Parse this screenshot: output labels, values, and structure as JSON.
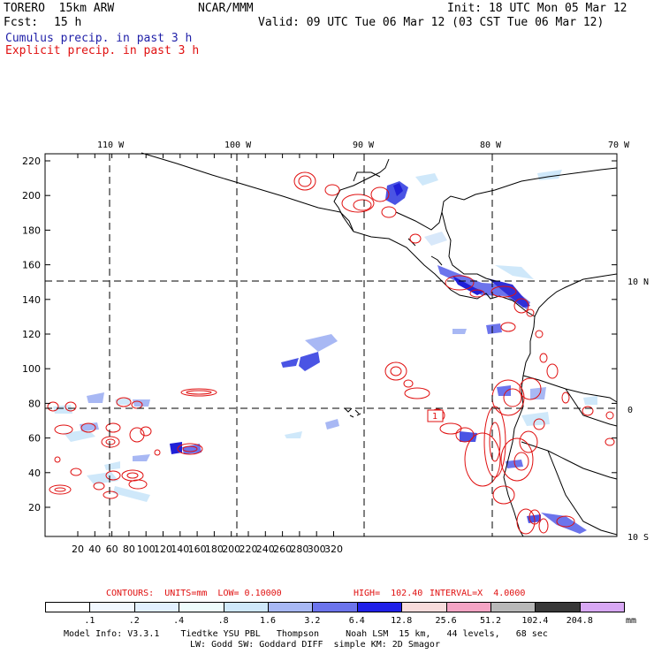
{
  "header": {
    "model": "TORERO  15km ARW",
    "org": "NCAR/MMM",
    "init": "Init: 18 UTC Mon 05 Mar 12",
    "fcst_label": "Fcst:",
    "fcst_value": "15 h",
    "valid": "Valid: 09 UTC Tue 06 Mar 12 (03 CST Tue 06 Mar 12)",
    "legend_cumulus": "Cumulus precip. in past 3 h",
    "legend_explicit": "Explicit precip. in past 3 h"
  },
  "map": {
    "top_lon_labels": [
      "110 W",
      "100 W",
      "90 W",
      "80 W",
      "70 W"
    ],
    "right_lat_labels": [
      "10 N",
      "0",
      "10 S"
    ],
    "y_ticks": [
      "220",
      "200",
      "180",
      "160",
      "140",
      "120",
      "100",
      "80",
      "60",
      "40",
      "20"
    ],
    "x_ticks": [
      "20",
      "40",
      "60",
      "80",
      "100",
      "120",
      "140",
      "160",
      "180",
      "200",
      "220",
      "240",
      "260",
      "280",
      "300",
      "320"
    ],
    "contour_label": "1"
  },
  "contours_info": {
    "contours": "CONTOURS:  UNITS=mm  LOW= 0.10000",
    "high": "HIGH=  102.40",
    "interval": "INTERVAL=X  4.0000"
  },
  "colorbar": {
    "unit": "mm",
    "labels": [
      ".1",
      ".2",
      ".4",
      ".8",
      "1.6",
      "3.2",
      "6.4",
      "12.8",
      "25.6",
      "51.2",
      "102.4",
      "204.8"
    ],
    "colors": [
      "#ffffff",
      "#f2f8ff",
      "#e2f0ff",
      "#eefcfc",
      "#cfe8fa",
      "#a8b8f4",
      "#6c74ec",
      "#2020e8",
      "#f8dcdc",
      "#f4a4c4",
      "#b8b8b8",
      "#383838",
      "#d8a8f4"
    ]
  },
  "footer": {
    "line1": "Model Info: V3.3.1    Tiedtke YSU PBL   Thompson     Noah LSM  15 km,   44 levels,   68 sec",
    "line2": "LW: Godd SW: Goddard DIFF  simple KM: 2D Smagor"
  }
}
